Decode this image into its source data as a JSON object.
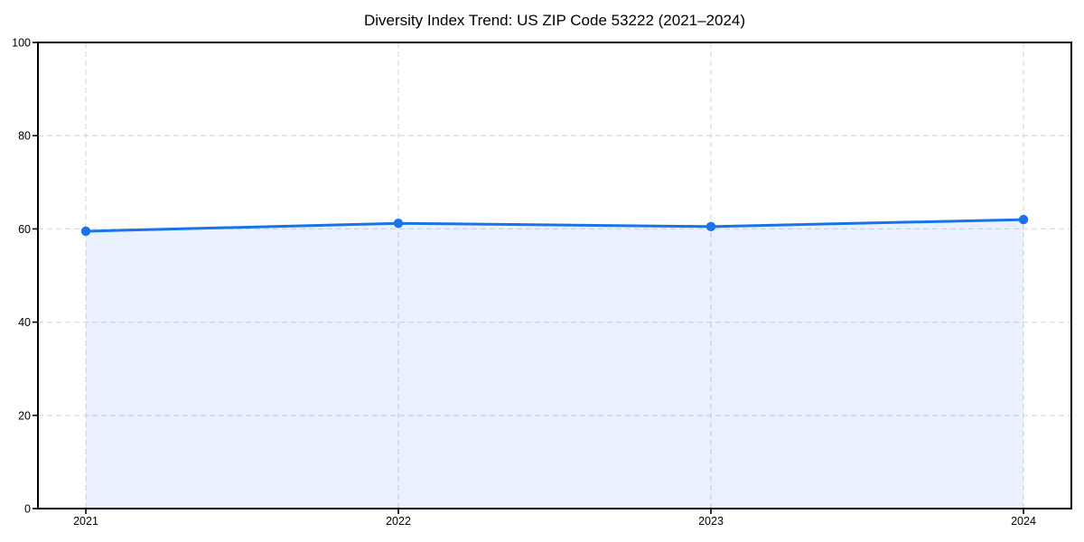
{
  "page": {
    "background": "#ffffff"
  },
  "chart_data": {
    "type": "line",
    "title": "Diversity Index Trend: US ZIP Code 53222 (2021–2024)",
    "x": [
      "2021",
      "2022",
      "2023",
      "2024"
    ],
    "series": [
      {
        "name": "Diversity Index",
        "values": [
          59.5,
          61.2,
          60.5,
          62.0
        ]
      }
    ],
    "xlabel": "",
    "ylabel": "",
    "ylim": [
      0,
      100
    ],
    "yticks": [
      0,
      20,
      40,
      60,
      80,
      100
    ],
    "grid": true,
    "grid_style": "dashed",
    "legend_position": "none",
    "area_fill": true,
    "marker": "circle",
    "colors": {
      "line": "#1a73e8",
      "marker": "#1a73e8",
      "area_fill": "rgba(26,115,232,0.10)",
      "gridline": "#dedede",
      "spine": "#000000",
      "tick_text": "#000000",
      "title_text": "#000000",
      "background": "#ffffff"
    }
  }
}
